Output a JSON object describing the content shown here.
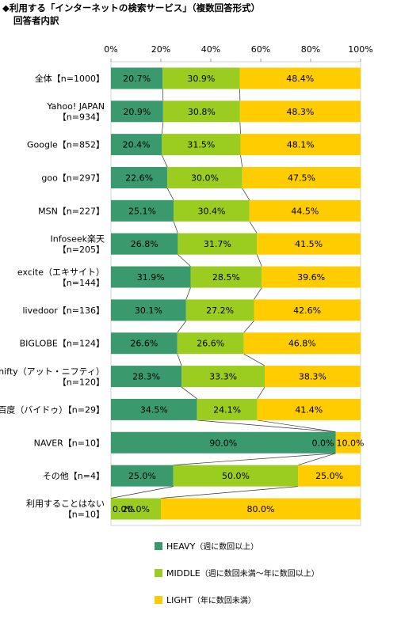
{
  "title": "◆利用する「インターネットの検索サービス」（複数回答形式）",
  "subtitle": "回答者内訳",
  "chart_data": {
    "type": "bar",
    "orientation": "horizontal",
    "stacked": "percent",
    "x_ticks": [
      "0%",
      "20%",
      "40%",
      "60%",
      "80%",
      "100%"
    ],
    "xlim": [
      0,
      100
    ],
    "legend_position": "bottom",
    "categories": [
      [
        "全体【n=1000】"
      ],
      [
        "Yahoo! JAPAN",
        "【n=934】"
      ],
      [
        "Google【n=852】"
      ],
      [
        "goo【n=297】"
      ],
      [
        "MSN【n=227】"
      ],
      [
        "Infoseek楽天",
        "【n=205】"
      ],
      [
        "excite（エキサイト）",
        "【n=144】"
      ],
      [
        "livedoor【n=136】"
      ],
      [
        "BIGLOBE【n=124】"
      ],
      [
        "nifty（アット・ニフティ）",
        "【n=120】"
      ],
      [
        "百度（バイドゥ）【n=29】"
      ],
      [
        "NAVER【n=10】"
      ],
      [
        "その他【n=4】"
      ],
      [
        "利用することはない",
        "【n=10】"
      ]
    ],
    "series": [
      {
        "name": "HEAVY（週に数回以上）",
        "color": "#3a9a6e",
        "values": [
          20.7,
          20.9,
          20.4,
          22.6,
          25.1,
          26.8,
          31.9,
          30.1,
          26.6,
          28.3,
          34.5,
          90.0,
          25.0,
          0.0
        ],
        "labels": [
          "20.7%",
          "20.9%",
          "20.4%",
          "22.6%",
          "25.1%",
          "26.8%",
          "31.9%",
          "30.1%",
          "26.6%",
          "28.3%",
          "34.5%",
          "90.0%",
          "25.0%",
          "0.0%"
        ]
      },
      {
        "name": "MIDDLE（週に数回未満〜年に数回以上）",
        "color": "#9acd1f",
        "values": [
          30.9,
          30.8,
          31.5,
          30.0,
          30.4,
          31.7,
          28.5,
          27.2,
          26.6,
          33.3,
          24.1,
          0.0,
          50.0,
          20.0
        ],
        "labels": [
          "30.9%",
          "30.8%",
          "31.5%",
          "30.0%",
          "30.4%",
          "31.7%",
          "28.5%",
          "27.2%",
          "26.6%",
          "33.3%",
          "24.1%",
          "0.0%",
          "50.0%",
          "20.0%"
        ]
      },
      {
        "name": "LIGHT（年に数回未満）",
        "color": "#ffcc00",
        "values": [
          48.4,
          48.3,
          48.1,
          47.5,
          44.5,
          41.5,
          39.6,
          42.6,
          46.8,
          38.3,
          41.4,
          10.0,
          25.0,
          80.0
        ],
        "labels": [
          "48.4%",
          "48.3%",
          "48.1%",
          "47.5%",
          "44.5%",
          "41.5%",
          "39.6%",
          "42.6%",
          "46.8%",
          "38.3%",
          "41.4%",
          "10.0%",
          "25.0%",
          "80.0%"
        ]
      }
    ],
    "legend": [
      {
        "code": "HEAVY",
        "desc": "（週に数回以上）"
      },
      {
        "code": "MIDDLE",
        "desc": "（週に数回未満〜年に数回以上）"
      },
      {
        "code": "LIGHT",
        "desc": "（年に数回未満）"
      }
    ]
  }
}
